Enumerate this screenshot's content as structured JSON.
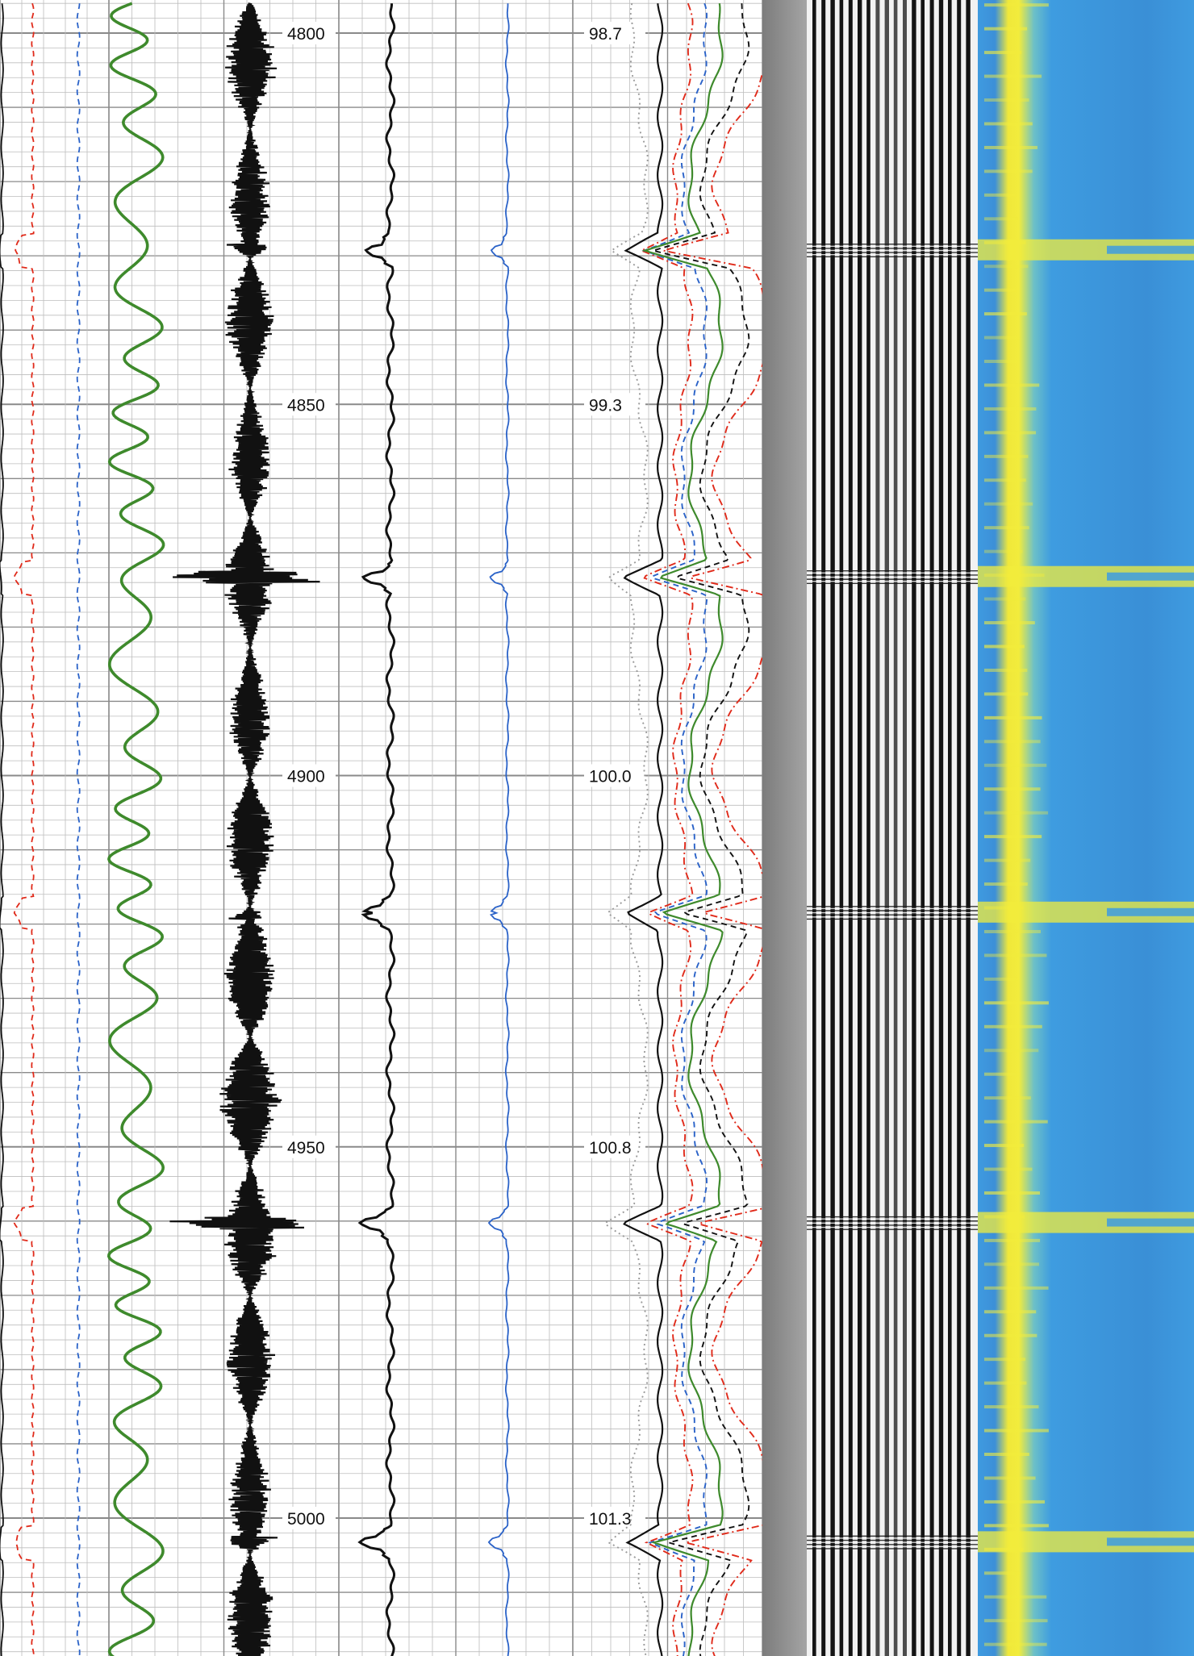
{
  "colors": {
    "paper": "#ffffff",
    "grid_minor": "#bdbdbd",
    "grid_major": "#8a8a8a",
    "curve_black": "#111111",
    "curve_red": "#e02a1a",
    "curve_blue": "#2a62c8",
    "curve_green": "#3e8a2c",
    "curve_gray": "#9a9a9a",
    "vdl_dark": "#141414",
    "vdl_light": "#f2f2f2",
    "map_blue": "#3e9ce0",
    "map_yellow": "#f2ec3c"
  },
  "chart_data": {
    "type": "line",
    "title": "",
    "y_axis": {
      "orientation": "depth-down",
      "range": [
        4796,
        5022
      ],
      "major_ticks": [
        4800,
        4850,
        4900,
        4950,
        5000
      ],
      "tick_labels": [
        "4800",
        "4850",
        "4900",
        "4950",
        "5000"
      ]
    },
    "time_axis": {
      "tick_depths": [
        4800,
        4850,
        4900,
        4950,
        5000
      ],
      "tick_labels": [
        "98.7",
        "99.3",
        "100.0",
        "100.8",
        "101.3"
      ]
    },
    "collar_depths": [
      4829.3,
      4873.3,
      4918.5,
      4960.3,
      5003.3
    ],
    "tracks": [
      {
        "name": "",
        "series": [
          {
            "name": "",
            "color": "curve_black",
            "style": "solid",
            "base": 0.02
          },
          {
            "name": "",
            "color": "curve_red",
            "style": "dashed",
            "base": 0.3
          },
          {
            "name": "",
            "color": "curve_blue",
            "style": "dashed",
            "base": 0.72
          },
          {
            "name": "",
            "color": "curve_green",
            "style": "solid",
            "base": 1.25
          }
        ]
      },
      {
        "name": "",
        "series": [
          {
            "name": "",
            "color": "curve_black",
            "style": "waveform",
            "amplitude": 1.0
          }
        ]
      },
      {
        "name": "",
        "series": [
          {
            "name": "",
            "color": "curve_black",
            "style": "solid",
            "base": 0.22
          },
          {
            "name": "",
            "color": "curve_blue",
            "style": "solid",
            "base": 0.72
          }
        ]
      },
      {
        "name": "",
        "series": [
          {
            "name": "",
            "color": "curve_gray",
            "style": "dotted",
            "base": 0.35
          },
          {
            "name": "",
            "color": "curve_black",
            "style": "solid",
            "base": 0.46
          },
          {
            "name": "",
            "color": "curve_red",
            "style": "dashdot",
            "base": 0.58
          },
          {
            "name": "",
            "color": "curve_blue",
            "style": "dashed",
            "base": 0.64
          },
          {
            "name": "",
            "color": "curve_green",
            "style": "solid",
            "base": 0.7
          },
          {
            "name": "",
            "color": "curve_black",
            "style": "dashed",
            "base": 0.8
          },
          {
            "name": "",
            "color": "curve_red",
            "style": "dashdot",
            "base": 0.9
          }
        ]
      },
      {
        "name": "",
        "type": "variable-density"
      },
      {
        "name": "",
        "type": "amplitude-map"
      }
    ],
    "grid": true
  }
}
